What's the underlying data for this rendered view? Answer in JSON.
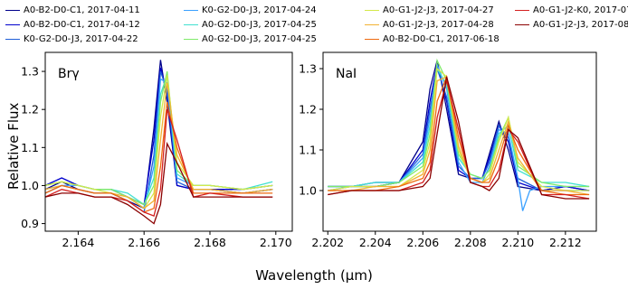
{
  "chart_data": [
    {
      "type": "line",
      "panel_label": "Brγ",
      "xlim": [
        2.163,
        2.1705
      ],
      "ylim": [
        0.88,
        1.35
      ],
      "xticks": [
        "2.164",
        "2.166",
        "2.168",
        "2.170"
      ],
      "yticks": [
        "0.9",
        "1.0",
        "1.1",
        "1.2",
        "1.3"
      ],
      "series": [
        {
          "name": "A0-B2-D0-C1, 2017-04-11",
          "color": "#00008b",
          "x": [
            2.163,
            2.1635,
            2.164,
            2.1645,
            2.165,
            2.1655,
            2.166,
            2.1663,
            2.1665,
            2.1667,
            2.167,
            2.1675,
            2.168,
            2.169,
            2.1699
          ],
          "y": [
            0.99,
            1.01,
            0.99,
            0.98,
            0.98,
            0.96,
            0.94,
            1.15,
            1.33,
            1.22,
            1.0,
            0.99,
            0.99,
            0.98,
            0.99
          ]
        },
        {
          "name": "A0-B2-D0-C1, 2017-04-12",
          "color": "#0000cd",
          "x": [
            2.163,
            2.1635,
            2.164,
            2.1645,
            2.165,
            2.1655,
            2.166,
            2.1663,
            2.1665,
            2.1667,
            2.167,
            2.1675,
            2.168,
            2.169,
            2.1699
          ],
          "y": [
            1.0,
            1.02,
            1.0,
            0.99,
            0.99,
            0.97,
            0.95,
            1.12,
            1.31,
            1.24,
            1.0,
            0.99,
            0.99,
            0.99,
            1.0
          ]
        },
        {
          "name": "K0-G2-D0-J3, 2017-04-22",
          "color": "#1f5fd8",
          "x": [
            2.163,
            2.1635,
            2.164,
            2.1645,
            2.165,
            2.1655,
            2.166,
            2.1663,
            2.1665,
            2.1667,
            2.167,
            2.1675,
            2.168,
            2.169,
            2.1699
          ],
          "y": [
            0.98,
            1.0,
            0.99,
            0.98,
            0.98,
            0.96,
            0.93,
            1.08,
            1.3,
            1.25,
            1.01,
            0.99,
            0.99,
            0.98,
            0.99
          ]
        },
        {
          "name": "K0-G2-D0-J3, 2017-04-24",
          "color": "#3aa0ff",
          "x": [
            2.163,
            2.1635,
            2.164,
            2.1645,
            2.165,
            2.1655,
            2.166,
            2.1663,
            2.1665,
            2.1667,
            2.167,
            2.1675,
            2.168,
            2.169,
            2.1699
          ],
          "y": [
            0.99,
            1.0,
            1.0,
            0.99,
            0.99,
            0.97,
            0.94,
            1.05,
            1.28,
            1.27,
            1.02,
            1.0,
            1.0,
            0.99,
            1.0
          ]
        },
        {
          "name": "A0-G2-D0-J3, 2017-04-25",
          "color": "#40e0d0",
          "x": [
            2.163,
            2.1635,
            2.164,
            2.1645,
            2.165,
            2.1655,
            2.166,
            2.1663,
            2.1665,
            2.1667,
            2.167,
            2.1675,
            2.168,
            2.169,
            2.1699
          ],
          "y": [
            1.0,
            1.01,
            1.0,
            0.99,
            0.99,
            0.98,
            0.95,
            1.02,
            1.24,
            1.29,
            1.03,
            1.0,
            1.0,
            0.99,
            1.01
          ]
        },
        {
          "name": "A0-G2-D0-J3, 2017-04-25",
          "color": "#7fea6a",
          "x": [
            2.163,
            2.1635,
            2.164,
            2.1645,
            2.165,
            2.1655,
            2.166,
            2.1663,
            2.1665,
            2.1667,
            2.167,
            2.1675,
            2.168,
            2.169,
            2.1699
          ],
          "y": [
            1.0,
            1.01,
            1.0,
            0.99,
            0.99,
            0.97,
            0.95,
            1.0,
            1.22,
            1.3,
            1.04,
            1.0,
            1.0,
            0.99,
            1.0
          ]
        },
        {
          "name": "A0-G1-J2-J3, 2017-04-27",
          "color": "#d4e84a",
          "x": [
            2.163,
            2.1635,
            2.164,
            2.1645,
            2.165,
            2.1655,
            2.166,
            2.1663,
            2.1665,
            2.1667,
            2.167,
            2.1675,
            2.168,
            2.169,
            2.1699
          ],
          "y": [
            1.0,
            1.01,
            1.0,
            0.99,
            0.98,
            0.97,
            0.94,
            0.98,
            1.18,
            1.29,
            1.06,
            1.0,
            1.0,
            0.99,
            1.0
          ]
        },
        {
          "name": "A0-G1-J2-J3, 2017-04-28",
          "color": "#f2b233",
          "x": [
            2.163,
            2.1635,
            2.164,
            2.1645,
            2.165,
            2.1655,
            2.166,
            2.1663,
            2.1665,
            2.1667,
            2.167,
            2.1675,
            2.168,
            2.169,
            2.1699
          ],
          "y": [
            0.99,
            1.0,
            0.99,
            0.98,
            0.98,
            0.97,
            0.94,
            0.96,
            1.12,
            1.27,
            1.08,
            0.99,
            0.99,
            0.98,
            0.99
          ]
        },
        {
          "name": "A0-B2-D0-C1, 2017-06-18",
          "color": "#ee6a10",
          "x": [
            2.163,
            2.1635,
            2.164,
            2.1645,
            2.165,
            2.1655,
            2.166,
            2.1663,
            2.1665,
            2.1667,
            2.167,
            2.1675,
            2.168,
            2.169,
            2.1699
          ],
          "y": [
            0.98,
            1.0,
            0.99,
            0.98,
            0.98,
            0.96,
            0.93,
            0.94,
            1.05,
            1.22,
            1.1,
            0.98,
            0.98,
            0.98,
            0.98
          ]
        },
        {
          "name": "A0-G1-J2-K0, 2017-07-26",
          "color": "#d42020",
          "x": [
            2.163,
            2.1635,
            2.164,
            2.1645,
            2.165,
            2.1655,
            2.166,
            2.1663,
            2.1665,
            2.1667,
            2.167,
            2.1675,
            2.168,
            2.169,
            2.1699
          ],
          "y": [
            0.97,
            0.99,
            0.98,
            0.97,
            0.97,
            0.96,
            0.93,
            0.92,
            0.99,
            1.2,
            1.12,
            0.97,
            0.98,
            0.97,
            0.97
          ]
        },
        {
          "name": "A0-G1-J2-J3, 2017-08-28",
          "color": "#8b0000",
          "x": [
            2.163,
            2.1635,
            2.164,
            2.1645,
            2.165,
            2.1655,
            2.166,
            2.1663,
            2.1665,
            2.1667,
            2.167,
            2.1675,
            2.168,
            2.169,
            2.1699
          ],
          "y": [
            0.97,
            0.98,
            0.98,
            0.97,
            0.97,
            0.95,
            0.92,
            0.9,
            0.95,
            1.11,
            1.06,
            0.97,
            0.97,
            0.97,
            0.97
          ]
        }
      ]
    },
    {
      "type": "line",
      "panel_label": "NaI",
      "xlim": [
        2.2018,
        2.2133
      ],
      "ylim": [
        0.9,
        1.34
      ],
      "xticks": [
        "2.202",
        "2.204",
        "2.206",
        "2.208",
        "2.210",
        "2.212"
      ],
      "yticks": [
        "1.0",
        "1.1",
        "1.2",
        "1.3"
      ],
      "series": [
        {
          "name": "A0-B2-D0-C1, 2017-04-11",
          "color": "#00008b",
          "x": [
            2.202,
            2.203,
            2.204,
            2.205,
            2.206,
            2.2063,
            2.2066,
            2.207,
            2.2075,
            2.208,
            2.2085,
            2.2088,
            2.2092,
            2.2096,
            2.21,
            2.211,
            2.212,
            2.213
          ],
          "y": [
            1.01,
            1.01,
            1.01,
            1.02,
            1.12,
            1.25,
            1.32,
            1.2,
            1.04,
            1.03,
            1.03,
            1.09,
            1.17,
            1.1,
            1.01,
            1.0,
            1.01,
            1.0
          ]
        },
        {
          "name": "A0-B2-D0-C1, 2017-04-12",
          "color": "#0000cd",
          "x": [
            2.202,
            2.203,
            2.204,
            2.205,
            2.206,
            2.2063,
            2.2066,
            2.207,
            2.2075,
            2.208,
            2.2085,
            2.2088,
            2.2092,
            2.2096,
            2.21,
            2.211,
            2.212,
            2.213
          ],
          "y": [
            1.01,
            1.01,
            1.02,
            1.02,
            1.1,
            1.22,
            1.31,
            1.22,
            1.05,
            1.03,
            1.03,
            1.08,
            1.16,
            1.12,
            1.02,
            1.0,
            1.01,
            1.0
          ]
        },
        {
          "name": "K0-G2-D0-J3, 2017-04-22",
          "color": "#1f5fd8",
          "x": [
            2.202,
            2.203,
            2.204,
            2.205,
            2.206,
            2.2063,
            2.2066,
            2.207,
            2.2075,
            2.208,
            2.2085,
            2.2088,
            2.2092,
            2.2096,
            2.21,
            2.211,
            2.212,
            2.213
          ],
          "y": [
            1.0,
            1.01,
            1.01,
            1.02,
            1.09,
            1.2,
            1.3,
            1.23,
            1.06,
            1.03,
            1.03,
            1.07,
            1.16,
            1.13,
            1.03,
            1.0,
            1.0,
            1.0
          ]
        },
        {
          "name": "K0-G2-D0-J3, 2017-04-24",
          "color": "#3aa0ff",
          "x": [
            2.202,
            2.203,
            2.204,
            2.205,
            2.206,
            2.2063,
            2.2066,
            2.207,
            2.2075,
            2.208,
            2.2085,
            2.2088,
            2.2092,
            2.2096,
            2.21,
            2.2102,
            2.2105,
            2.211,
            2.212,
            2.213
          ],
          "y": [
            1.01,
            1.01,
            1.02,
            1.02,
            1.08,
            1.18,
            1.31,
            1.25,
            1.07,
            1.02,
            1.02,
            1.06,
            1.15,
            1.14,
            1.03,
            0.95,
            1.0,
            1.01,
            1.01,
            1.01
          ]
        },
        {
          "name": "A0-G2-D0-J3, 2017-04-25",
          "color": "#40e0d0",
          "x": [
            2.202,
            2.203,
            2.204,
            2.205,
            2.206,
            2.2063,
            2.2066,
            2.207,
            2.2075,
            2.208,
            2.2085,
            2.2088,
            2.2092,
            2.2096,
            2.21,
            2.211,
            2.212,
            2.213
          ],
          "y": [
            1.01,
            1.01,
            1.02,
            1.02,
            1.07,
            1.16,
            1.3,
            1.26,
            1.08,
            1.04,
            1.03,
            1.05,
            1.14,
            1.16,
            1.05,
            1.02,
            1.02,
            1.01
          ]
        },
        {
          "name": "A0-G2-D0-J3, 2017-04-25",
          "color": "#7fea6a",
          "x": [
            2.202,
            2.203,
            2.204,
            2.205,
            2.206,
            2.2063,
            2.2066,
            2.207,
            2.2075,
            2.208,
            2.2085,
            2.2088,
            2.2092,
            2.2096,
            2.21,
            2.211,
            2.212,
            2.213
          ],
          "y": [
            1.01,
            1.01,
            1.01,
            1.02,
            1.06,
            1.14,
            1.32,
            1.27,
            1.09,
            1.04,
            1.03,
            1.05,
            1.13,
            1.18,
            1.06,
            1.02,
            1.01,
            1.01
          ]
        },
        {
          "name": "A0-G1-J2-J3, 2017-04-27",
          "color": "#d4e84a",
          "x": [
            2.202,
            2.203,
            2.204,
            2.205,
            2.206,
            2.2063,
            2.2066,
            2.207,
            2.2075,
            2.208,
            2.2085,
            2.2088,
            2.2092,
            2.2096,
            2.21,
            2.211,
            2.212,
            2.213
          ],
          "y": [
            1.0,
            1.01,
            1.01,
            1.01,
            1.05,
            1.12,
            1.3,
            1.28,
            1.1,
            1.03,
            1.02,
            1.04,
            1.12,
            1.18,
            1.07,
            1.01,
            1.0,
            1.0
          ]
        },
        {
          "name": "A0-G1-J2-J3, 2017-04-28",
          "color": "#f2b233",
          "x": [
            2.202,
            2.203,
            2.204,
            2.205,
            2.206,
            2.2063,
            2.2066,
            2.207,
            2.2075,
            2.208,
            2.2085,
            2.2088,
            2.2092,
            2.2096,
            2.21,
            2.211,
            2.212,
            2.213
          ],
          "y": [
            1.0,
            1.0,
            1.01,
            1.01,
            1.04,
            1.1,
            1.27,
            1.28,
            1.11,
            1.03,
            1.02,
            1.03,
            1.1,
            1.17,
            1.08,
            1.0,
            1.0,
            0.99
          ]
        },
        {
          "name": "A0-B2-D0-C1, 2017-06-18",
          "color": "#ee6a10",
          "x": [
            2.202,
            2.203,
            2.204,
            2.205,
            2.206,
            2.2063,
            2.2066,
            2.207,
            2.2075,
            2.208,
            2.2085,
            2.2088,
            2.2092,
            2.2096,
            2.21,
            2.211,
            2.212,
            2.213
          ],
          "y": [
            1.0,
            1.0,
            1.0,
            1.01,
            1.03,
            1.07,
            1.22,
            1.28,
            1.13,
            1.03,
            1.02,
            1.02,
            1.08,
            1.16,
            1.1,
            1.0,
            0.99,
            0.99
          ]
        },
        {
          "name": "A0-G1-J2-K0, 2017-07-26",
          "color": "#d42020",
          "x": [
            2.202,
            2.203,
            2.204,
            2.205,
            2.206,
            2.2063,
            2.2066,
            2.207,
            2.2075,
            2.208,
            2.2085,
            2.2088,
            2.2092,
            2.2096,
            2.21,
            2.211,
            2.212,
            2.213
          ],
          "y": [
            0.99,
            1.0,
            1.0,
            1.0,
            1.02,
            1.05,
            1.18,
            1.27,
            1.15,
            1.02,
            1.01,
            1.01,
            1.05,
            1.15,
            1.12,
            0.99,
            0.99,
            0.98
          ]
        },
        {
          "name": "A0-G1-J2-J3, 2017-08-28",
          "color": "#8b0000",
          "x": [
            2.202,
            2.203,
            2.204,
            2.205,
            2.206,
            2.2063,
            2.2066,
            2.207,
            2.2075,
            2.208,
            2.2085,
            2.2088,
            2.2092,
            2.2096,
            2.21,
            2.211,
            2.212,
            2.213
          ],
          "y": [
            0.99,
            1.0,
            1.0,
            1.0,
            1.01,
            1.03,
            1.14,
            1.28,
            1.17,
            1.02,
            1.01,
            1.0,
            1.03,
            1.15,
            1.13,
            0.99,
            0.98,
            0.98
          ]
        }
      ]
    }
  ],
  "ylabel": "Relative Flux",
  "xlabel": "Wavelength (μm)"
}
